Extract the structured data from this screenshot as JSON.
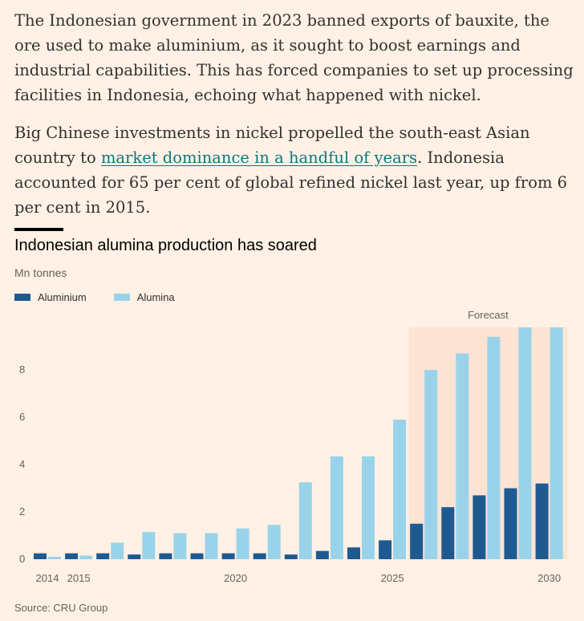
{
  "article": {
    "para1": "The Indonesian government in 2023 banned exports of bauxite, the ore used to make aluminium, as it sought to boost earnings and industrial capabilities. This has forced companies to set up processing facilities in Indonesia, echoing what happened with nickel.",
    "para2_before": "Big Chinese investments in nickel propelled the south-east Asian country to ",
    "para2_link": "market dominance in a handful of years",
    "para2_after": ". Indonesia accounted for 65 per cent of global refined nickel last year, up from 6 per cent in 2015."
  },
  "colors": {
    "background": "#fff1e5",
    "aluminium": "#1e5a8f",
    "alumina": "#99d3ea",
    "forecast_band": "#fde3d3",
    "link": "#0d7680"
  },
  "chart_data": {
    "type": "bar",
    "title": "Indonesian alumina production has soared",
    "ylabel": "Mn tonnes",
    "xlabel": "",
    "categories": [
      "2014",
      "2015",
      "2016",
      "2017",
      "2018",
      "2019",
      "2020",
      "2021",
      "2022",
      "2023",
      "2024",
      "2025",
      "2026",
      "2027",
      "2028",
      "2029",
      "2030"
    ],
    "x_tick_labels": [
      "2014",
      "2015",
      "2020",
      "2025",
      "2030"
    ],
    "series": [
      {
        "name": "Aluminium",
        "values": [
          0.25,
          0.25,
          0.25,
          0.2,
          0.25,
          0.25,
          0.25,
          0.25,
          0.2,
          0.35,
          0.5,
          0.8,
          1.5,
          2.2,
          2.7,
          3.0,
          3.2
        ]
      },
      {
        "name": "Alumina",
        "values": [
          0.1,
          0.15,
          0.7,
          1.15,
          1.1,
          1.1,
          1.3,
          1.45,
          3.25,
          4.35,
          4.35,
          5.9,
          8.0,
          8.7,
          9.4,
          9.8,
          9.8
        ]
      }
    ],
    "ylim": [
      0,
      9.8
    ],
    "y_ticks": [
      0,
      2,
      4,
      6,
      8
    ],
    "forecast_label": "Forecast",
    "forecast_start": "2026",
    "grid": false,
    "legend_position": "top-left"
  },
  "source": "Source: CRU Group"
}
